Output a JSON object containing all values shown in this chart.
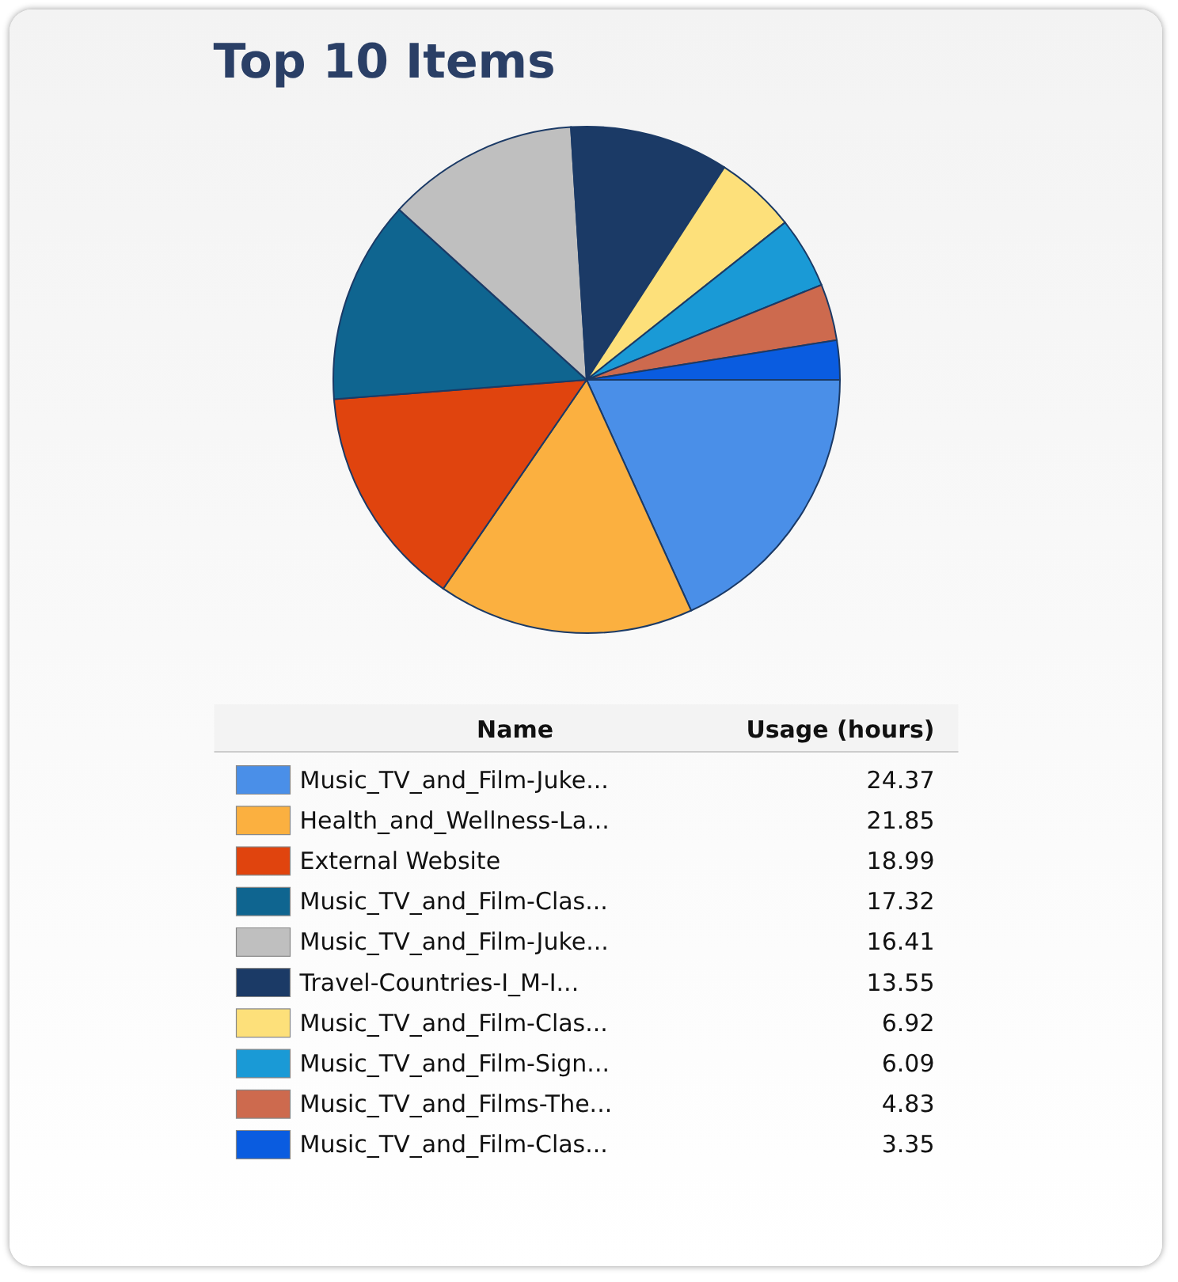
{
  "chart_data": {
    "type": "pie",
    "title": "Top 10 Items",
    "legend_title": "Name",
    "ylabel": "Usage (hours)",
    "categories": [
      "Music_TV_and_Film-Juke...",
      "Health_and_Wellness-La...",
      "External Website",
      "Music_TV_and_Film-Clas...",
      "Music_TV_and_Film-Juke...",
      "Travel-Countries-I_M-I...",
      "Music_TV_and_Film-Clas...",
      "Music_TV_and_Film-Sign...",
      "Music_TV_and_Films-The...",
      "Music_TV_and_Film-Clas..."
    ],
    "values": [
      24.37,
      21.85,
      18.99,
      17.32,
      16.41,
      13.55,
      6.92,
      6.09,
      4.83,
      3.35
    ],
    "colors": [
      "#4a8fe8",
      "#fbb040",
      "#e0440e",
      "#0f6590",
      "#bfbfbf",
      "#1b3a66",
      "#fde07a",
      "#1a9ad6",
      "#cd6a4e",
      "#0a5ce0"
    ],
    "data_labels": true,
    "legend": "bottom"
  }
}
